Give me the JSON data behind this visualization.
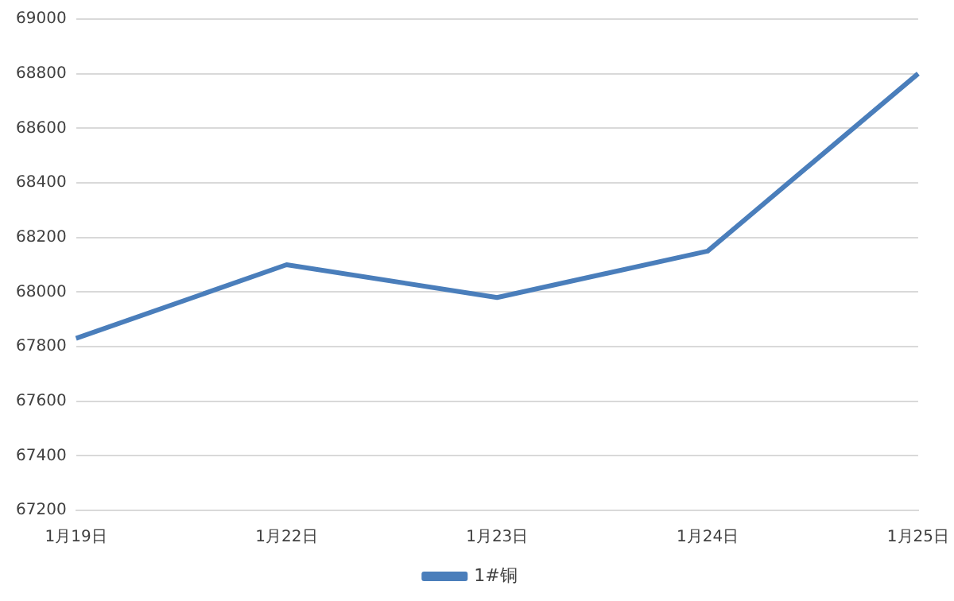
{
  "chart_data": {
    "type": "line",
    "categories": [
      "1月19日",
      "1月22日",
      "1月23日",
      "1月24日",
      "1月25日"
    ],
    "series": [
      {
        "name": "1#铜",
        "color": "#4a7ebb",
        "values": [
          67830,
          68100,
          67980,
          68150,
          68800
        ]
      }
    ],
    "ylim": [
      67200,
      69000
    ],
    "yticks": [
      67200,
      67400,
      67600,
      67800,
      68000,
      68200,
      68400,
      68600,
      68800,
      69000
    ],
    "grid": "y",
    "legend": "bottom",
    "marker": "none",
    "line_style": "solid"
  }
}
